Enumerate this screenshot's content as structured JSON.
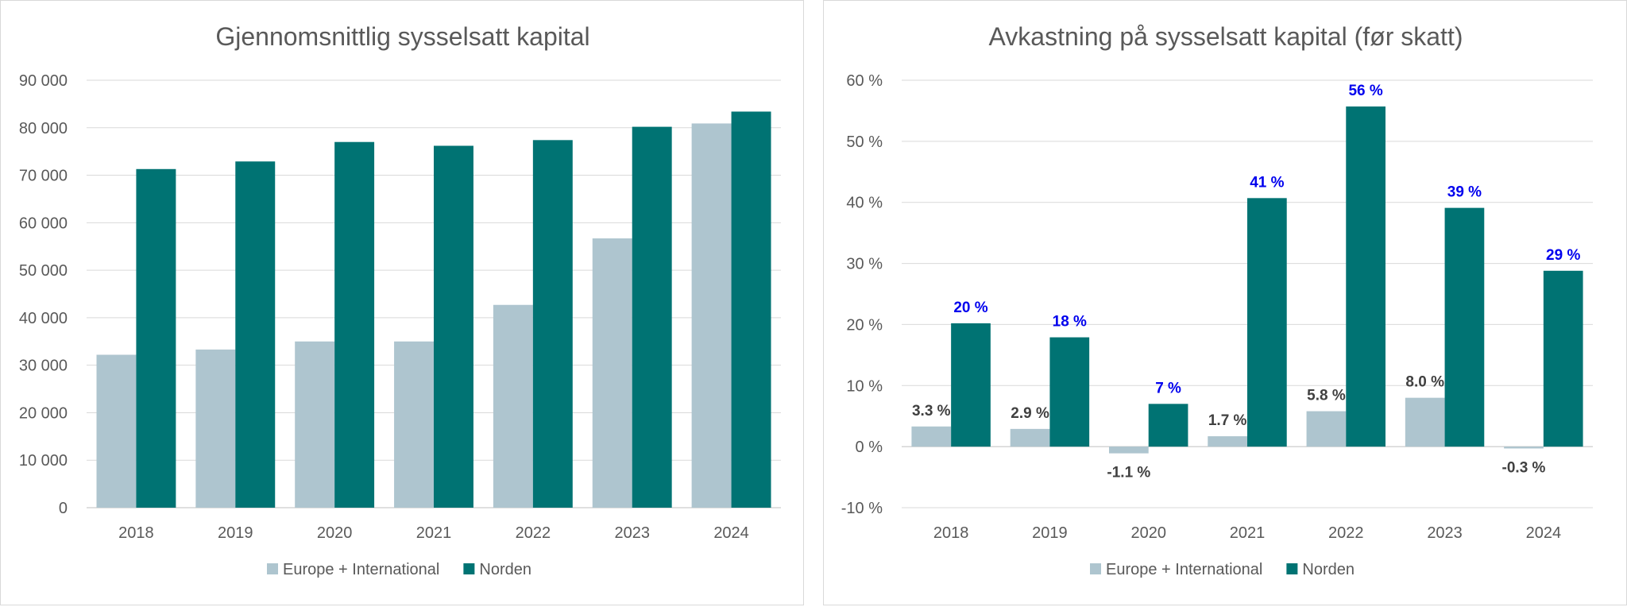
{
  "chart_data": [
    {
      "type": "bar",
      "title": "Gjennomsnittlig sysselsatt kapital",
      "categories": [
        "2018",
        "2019",
        "2020",
        "2021",
        "2022",
        "2023",
        "2024"
      ],
      "series": [
        {
          "name": "Europe + International",
          "color": "#aec5cf",
          "values": [
            32200,
            33300,
            35000,
            35000,
            42700,
            56700,
            80900
          ]
        },
        {
          "name": "Norden",
          "color": "#007373",
          "values": [
            71300,
            72900,
            77000,
            76200,
            77400,
            80200,
            83400
          ]
        }
      ],
      "ylim": [
        0,
        90000
      ],
      "yticks": [
        0,
        10000,
        20000,
        30000,
        40000,
        50000,
        60000,
        70000,
        80000,
        90000
      ],
      "ytick_labels": [
        "0",
        "10 000",
        "20 000",
        "30 000",
        "40 000",
        "50 000",
        "60 000",
        "70 000",
        "80 000",
        "90 000"
      ],
      "grid": true,
      "legend": "bottom"
    },
    {
      "type": "bar",
      "title": "Avkastning på sysselsatt kapital (før skatt)",
      "categories": [
        "2018",
        "2019",
        "2020",
        "2021",
        "2022",
        "2023",
        "2024"
      ],
      "series": [
        {
          "name": "Europe + International",
          "color": "#aec5cf",
          "values": [
            3.3,
            2.9,
            -1.1,
            1.7,
            5.8,
            8.0,
            -0.3
          ],
          "labels": [
            "3.3 %",
            "2.9 %",
            "-1.1 %",
            "1.7 %",
            "5.8 %",
            "8.0 %",
            "-0.3 %"
          ]
        },
        {
          "name": "Norden",
          "color": "#007373",
          "values": [
            20.2,
            17.9,
            7.0,
            40.7,
            55.7,
            39.1,
            28.8
          ],
          "labels": [
            "20 %",
            "18 %",
            "7 %",
            "41 %",
            "56 %",
            "39 %",
            "29 %"
          ]
        }
      ],
      "ylim": [
        -10,
        60
      ],
      "yticks": [
        -10,
        0,
        10,
        20,
        30,
        40,
        50,
        60
      ],
      "ytick_labels": [
        "-10 %",
        "0 %",
        "10 %",
        "20 %",
        "30 %",
        "40 %",
        "50 %",
        "60 %"
      ],
      "grid": true,
      "legend": "bottom"
    }
  ]
}
